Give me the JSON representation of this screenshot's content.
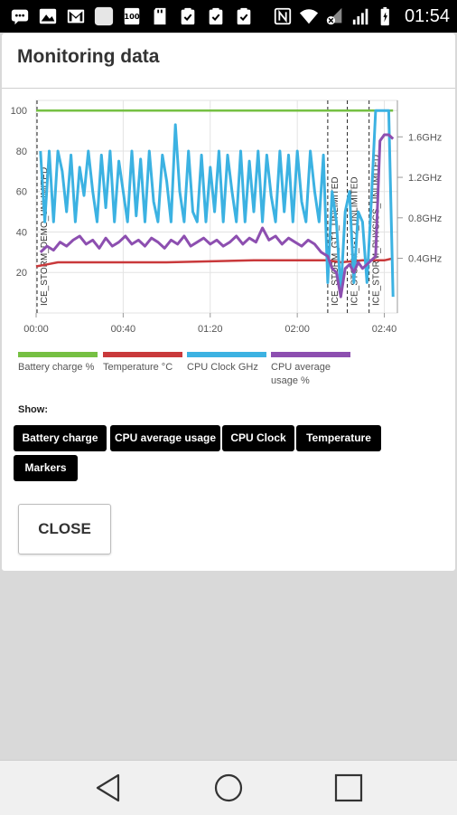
{
  "status_bar": {
    "time": "01:54",
    "icons_left": [
      "messages-icon",
      "gallery-icon",
      "gmail-icon",
      "app-icon",
      "benchmark-100-icon",
      "sd-card-icon",
      "clipboard-check-icon",
      "clipboard-check-icon",
      "clipboard-check-icon"
    ],
    "icons_right": [
      "nfc-icon",
      "wifi-icon",
      "signal-muted-icon",
      "signal-bars-icon",
      "battery-icon"
    ],
    "badge_100": "100"
  },
  "dialog": {
    "title": "Monitoring data",
    "show_label": "Show:",
    "buttons": {
      "battery": "Battery charge",
      "cpu_usage": "CPU average usage",
      "cpu_clock": "CPU Clock",
      "temperature": "Temperature",
      "markers": "Markers"
    },
    "close_label": "CLOSE"
  },
  "legend": [
    {
      "label": "Battery charge %",
      "color": "#76c043"
    },
    {
      "label": "Temperature °C",
      "color": "#c9393b"
    },
    {
      "label": "CPU Clock GHz",
      "color": "#3cb2e2"
    },
    {
      "label": "CPU average usage %",
      "color": "#8d4fb0"
    }
  ],
  "chart_data": {
    "type": "line",
    "x_ticks": [
      "00:00",
      "00:40",
      "01:20",
      "02:00",
      "02:40"
    ],
    "y_left_ticks": [
      "100",
      "80",
      "60",
      "40",
      "20"
    ],
    "y_right_ticks": [
      "1.6GHz",
      "1.2GHz",
      "0.8GHz",
      "0.4GHz"
    ],
    "xlim": [
      0,
      166
    ],
    "ylim_left": [
      0,
      105
    ],
    "grid": true,
    "markers": [
      {
        "label": "ICE_STORM_DEMO_UNLIMITED",
        "x": 0
      },
      {
        "label": "ICE_STORM_GT1_UNLIMITED",
        "x": 134
      },
      {
        "label": "ICE_STORM_GT2_UNLIMITED",
        "x": 143
      },
      {
        "label": "ICE_STORM_PHYSICS_UNLIMITED",
        "x": 153
      }
    ],
    "series": [
      {
        "name": "Battery charge %",
        "color": "#76c043",
        "x": [
          0,
          164
        ],
        "y": [
          100,
          100
        ]
      },
      {
        "name": "Temperature °C",
        "color": "#c9393b",
        "x": [
          0,
          5,
          10,
          20,
          60,
          100,
          120,
          134,
          140,
          150,
          160,
          164
        ],
        "y": [
          23,
          24,
          25,
          25,
          25,
          26,
          26,
          26,
          25,
          26,
          26,
          27
        ]
      },
      {
        "name": "CPU Clock GHz",
        "color": "#3cb2e2",
        "x": [
          2,
          4,
          6,
          8,
          10,
          12,
          14,
          16,
          18,
          20,
          22,
          24,
          26,
          28,
          30,
          32,
          34,
          36,
          38,
          40,
          42,
          44,
          46,
          48,
          50,
          52,
          54,
          56,
          58,
          60,
          62,
          64,
          66,
          68,
          70,
          72,
          74,
          76,
          78,
          80,
          82,
          84,
          86,
          88,
          90,
          92,
          94,
          96,
          98,
          100,
          102,
          104,
          106,
          108,
          110,
          112,
          114,
          116,
          118,
          120,
          122,
          124,
          126,
          128,
          130,
          132,
          134,
          136,
          138,
          140,
          142,
          144,
          146,
          148,
          150,
          152,
          154,
          156,
          158,
          160,
          162,
          164
        ],
        "y": [
          80,
          45,
          80,
          45,
          80,
          70,
          50,
          78,
          45,
          72,
          58,
          80,
          60,
          45,
          78,
          52,
          80,
          45,
          75,
          60,
          45,
          80,
          48,
          76,
          45,
          80,
          55,
          45,
          78,
          65,
          45,
          93,
          60,
          45,
          80,
          50,
          45,
          78,
          45,
          72,
          50,
          80,
          45,
          78,
          60,
          45,
          80,
          45,
          75,
          50,
          80,
          45,
          78,
          58,
          45,
          80,
          50,
          78,
          45,
          80,
          55,
          45,
          80,
          60,
          45,
          78,
          15,
          60,
          45,
          10,
          50,
          60,
          15,
          50,
          45,
          15,
          55,
          100,
          100,
          100,
          100,
          8
        ]
      },
      {
        "name": "CPU average usage %",
        "color": "#8d4fb0",
        "x": [
          2,
          5,
          8,
          11,
          14,
          17,
          20,
          23,
          26,
          29,
          32,
          35,
          38,
          41,
          44,
          47,
          50,
          53,
          56,
          59,
          62,
          65,
          68,
          71,
          74,
          77,
          80,
          83,
          86,
          89,
          92,
          95,
          98,
          101,
          104,
          107,
          110,
          113,
          116,
          119,
          122,
          125,
          128,
          131,
          134,
          136,
          138,
          140,
          142,
          144,
          146,
          148,
          150,
          152,
          154,
          156,
          158,
          160,
          162,
          164
        ],
        "y": [
          30,
          33,
          31,
          35,
          33,
          36,
          38,
          34,
          36,
          32,
          37,
          33,
          35,
          38,
          34,
          36,
          33,
          37,
          35,
          32,
          36,
          34,
          38,
          33,
          35,
          37,
          34,
          36,
          33,
          35,
          38,
          34,
          37,
          35,
          42,
          36,
          38,
          34,
          37,
          35,
          33,
          36,
          34,
          30,
          28,
          22,
          20,
          8,
          22,
          24,
          20,
          25,
          22,
          24,
          26,
          28,
          85,
          88,
          88,
          86
        ]
      }
    ]
  }
}
